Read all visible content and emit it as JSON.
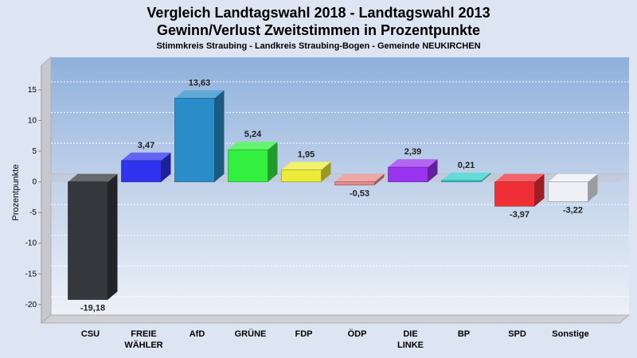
{
  "chart_data": {
    "type": "bar",
    "title": "Vergleich Landtagswahl 2018 - Landtagswahl 2013",
    "subtitle": "Gewinn/Verlust Zweitstimmen in Prozentpunkte",
    "caption": "Stimmkreis Straubing - Landkreis Straubing-Bogen - Gemeinde NEUKIRCHEN",
    "ylabel": "Prozentpunkte",
    "xlabel": "",
    "ylim": [
      -23,
      19
    ],
    "yticks": [
      15,
      10,
      5,
      0,
      -5,
      -10,
      -15,
      -20
    ],
    "grid": true,
    "categories": [
      "CSU",
      "FREIE WÄHLER",
      "AfD",
      "GRÜNE",
      "FDP",
      "ÖDP",
      "DIE LINKE",
      "BP",
      "SPD",
      "Sonstige"
    ],
    "category_lines": [
      [
        "CSU"
      ],
      [
        "FREIE",
        "WÄHLER"
      ],
      [
        "AfD"
      ],
      [
        "GRÜNE"
      ],
      [
        "FDP"
      ],
      [
        "ÖDP"
      ],
      [
        "DIE",
        "LINKE"
      ],
      [
        "BP"
      ],
      [
        "SPD"
      ],
      [
        "Sonstige"
      ]
    ],
    "values": [
      -19.18,
      3.47,
      13.63,
      5.24,
      1.95,
      -0.53,
      2.39,
      0.21,
      -3.97,
      -3.22
    ],
    "value_labels": [
      "-19,18",
      "3,47",
      "13,63",
      "5,24",
      "1,95",
      "-0,53",
      "2,39",
      "0,21",
      "-3,97",
      "-3,22"
    ],
    "colors": [
      "#34373c",
      "#2f33ee",
      "#2a8cc8",
      "#33f040",
      "#ecec38",
      "#e88a8a",
      "#9a33ee",
      "#33cccc",
      "#ee3036",
      "#eef0f6"
    ]
  }
}
